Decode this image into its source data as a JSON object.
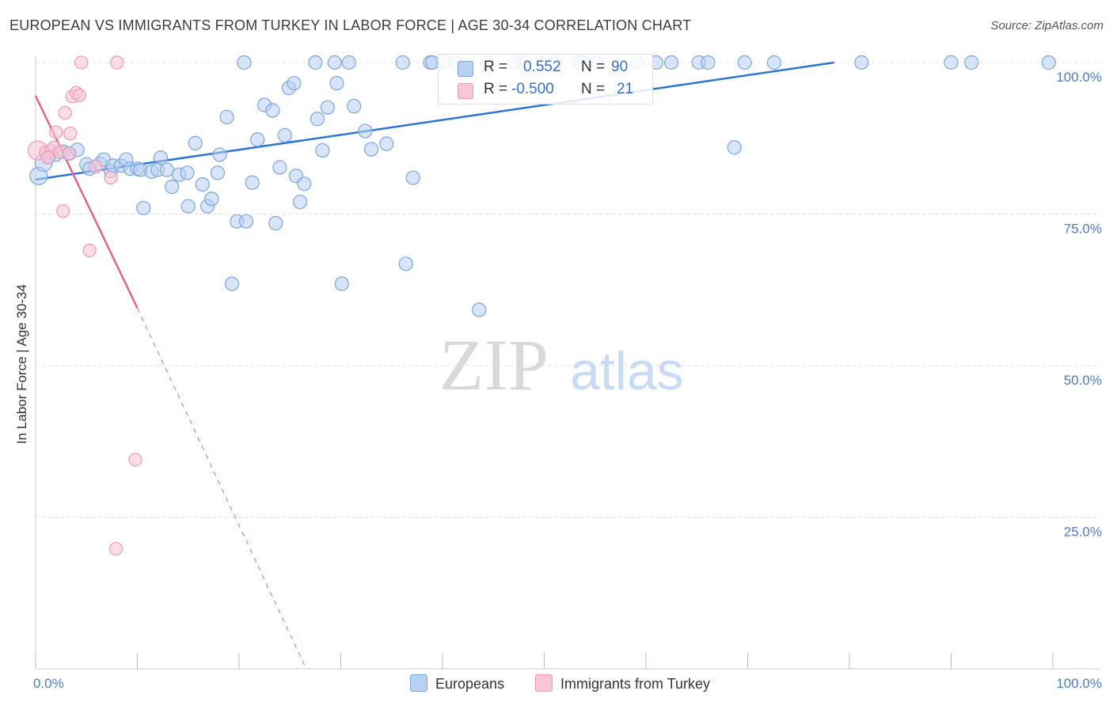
{
  "title": "EUROPEAN VS IMMIGRANTS FROM TURKEY IN LABOR FORCE | AGE 30-34 CORRELATION CHART",
  "source": "Source: ZipAtlas.com",
  "watermark": {
    "zip": "ZIP",
    "atlas": "atlas"
  },
  "legend": {
    "r_label": "R =",
    "n_label": "N =",
    "rows": [
      {
        "r": "0.552",
        "n": "90"
      },
      {
        "r": "-0.500",
        "n": "21"
      }
    ]
  },
  "bottom_legend": [
    "Europeans",
    "Immigrants from Turkey"
  ],
  "colors": {
    "blue_fill": "#b8d0f2",
    "blue_stroke": "#7aa6e0",
    "blue_line": "#2f74d0",
    "pink_fill": "#f9c6d6",
    "pink_stroke": "#ee9ab5",
    "pink_line": "#e0648f",
    "tick": "#4a7cc9",
    "grid": "#e3e3e3"
  },
  "chart_data": {
    "type": "scatter",
    "title": "EUROPEAN VS IMMIGRANTS FROM TURKEY IN LABOR FORCE | AGE 30-34 CORRELATION CHART",
    "xlabel": "",
    "ylabel": "In Labor Force | Age 30-34",
    "xlim": [
      0,
      100
    ],
    "ylim": [
      0,
      100
    ],
    "x_tick_labels": [
      "0.0%",
      "100.0%"
    ],
    "y_ticks": [
      25,
      50,
      75,
      100
    ],
    "y_tick_labels": [
      "25.0%",
      "50.0%",
      "75.0%",
      "100.0%"
    ],
    "grid": true,
    "series": [
      {
        "name": "Europeans",
        "R": 0.552,
        "N": 90,
        "trend": {
          "x": [
            0,
            78.5
          ],
          "y": [
            80.7,
            100
          ]
        },
        "points": [
          [
            0.3,
            81.3
          ],
          [
            0.8,
            83.5
          ],
          [
            1.3,
            84.5
          ],
          [
            2.0,
            84.8
          ],
          [
            2.7,
            85.3
          ],
          [
            3.3,
            85.0
          ],
          [
            4.1,
            85.6
          ],
          [
            5.0,
            83.2
          ],
          [
            5.3,
            82.5
          ],
          [
            6.3,
            83.3
          ],
          [
            6.7,
            84.0
          ],
          [
            7.4,
            82.1
          ],
          [
            7.6,
            83.0
          ],
          [
            8.4,
            83.0
          ],
          [
            8.9,
            84.0
          ],
          [
            9.3,
            82.5
          ],
          [
            10.0,
            82.5
          ],
          [
            10.3,
            82.3
          ],
          [
            10.6,
            76.0
          ],
          [
            11.4,
            82.0
          ],
          [
            12.0,
            82.3
          ],
          [
            12.3,
            84.3
          ],
          [
            12.9,
            82.3
          ],
          [
            13.4,
            79.5
          ],
          [
            14.1,
            81.5
          ],
          [
            14.9,
            81.8
          ],
          [
            15.0,
            76.3
          ],
          [
            15.7,
            86.7
          ],
          [
            16.4,
            79.9
          ],
          [
            16.9,
            76.3
          ],
          [
            17.3,
            77.5
          ],
          [
            17.9,
            81.8
          ],
          [
            18.1,
            84.8
          ],
          [
            18.8,
            91.0
          ],
          [
            19.3,
            63.5
          ],
          [
            19.8,
            73.8
          ],
          [
            20.5,
            100
          ],
          [
            20.7,
            73.8
          ],
          [
            21.3,
            80.2
          ],
          [
            21.8,
            87.3
          ],
          [
            22.5,
            93.0
          ],
          [
            23.3,
            92.1
          ],
          [
            23.6,
            73.5
          ],
          [
            24.0,
            82.7
          ],
          [
            24.5,
            88.0
          ],
          [
            24.9,
            95.8
          ],
          [
            25.4,
            96.6
          ],
          [
            25.6,
            81.3
          ],
          [
            26.0,
            77.0
          ],
          [
            26.4,
            80.0
          ],
          [
            27.5,
            100
          ],
          [
            27.7,
            90.7
          ],
          [
            28.2,
            85.5
          ],
          [
            28.7,
            92.6
          ],
          [
            29.4,
            100
          ],
          [
            29.6,
            96.6
          ],
          [
            30.1,
            63.5
          ],
          [
            30.8,
            100
          ],
          [
            31.3,
            92.8
          ],
          [
            32.4,
            88.7
          ],
          [
            33.0,
            85.7
          ],
          [
            34.5,
            86.6
          ],
          [
            36.1,
            100
          ],
          [
            36.4,
            66.8
          ],
          [
            37.1,
            81.0
          ],
          [
            38.8,
            100
          ],
          [
            39.0,
            100
          ],
          [
            43.6,
            59.2
          ],
          [
            44.4,
            100
          ],
          [
            47.1,
            100
          ],
          [
            48.1,
            100
          ],
          [
            49.9,
            100
          ],
          [
            51.0,
            100
          ],
          [
            53.4,
            100
          ],
          [
            53.8,
            100
          ],
          [
            55.2,
            100
          ],
          [
            59.2,
            100
          ],
          [
            61.0,
            100
          ],
          [
            62.5,
            100
          ],
          [
            65.2,
            100
          ],
          [
            66.1,
            100
          ],
          [
            68.7,
            86.0
          ],
          [
            69.7,
            100
          ],
          [
            72.6,
            100
          ],
          [
            81.2,
            100
          ],
          [
            90.0,
            100
          ],
          [
            92.0,
            100
          ],
          [
            99.6,
            100
          ],
          [
            40.2,
            100
          ],
          [
            41.3,
            100
          ]
        ]
      },
      {
        "name": "Immigrants from Turkey",
        "R": -0.5,
        "N": 21,
        "trend": {
          "x": [
            0,
            10
          ],
          "y": [
            94.5,
            59.5
          ]
        },
        "trend_dashed": {
          "x": [
            10,
            26.6
          ],
          "y": [
            59.5,
            0
          ]
        },
        "points": [
          [
            0.2,
            85.5
          ],
          [
            1.0,
            85.2
          ],
          [
            1.5,
            85.5
          ],
          [
            1.8,
            86.0
          ],
          [
            2.0,
            88.5
          ],
          [
            2.4,
            85.2
          ],
          [
            2.7,
            75.5
          ],
          [
            2.9,
            91.7
          ],
          [
            3.3,
            85.0
          ],
          [
            3.4,
            88.3
          ],
          [
            3.6,
            94.4
          ],
          [
            4.0,
            95.0
          ],
          [
            4.3,
            94.6
          ],
          [
            4.5,
            100
          ],
          [
            5.3,
            69.0
          ],
          [
            5.9,
            82.8
          ],
          [
            7.4,
            81.0
          ],
          [
            8.0,
            100
          ],
          [
            7.9,
            19.8
          ],
          [
            9.8,
            34.5
          ],
          [
            1.2,
            84.3
          ]
        ]
      }
    ]
  }
}
